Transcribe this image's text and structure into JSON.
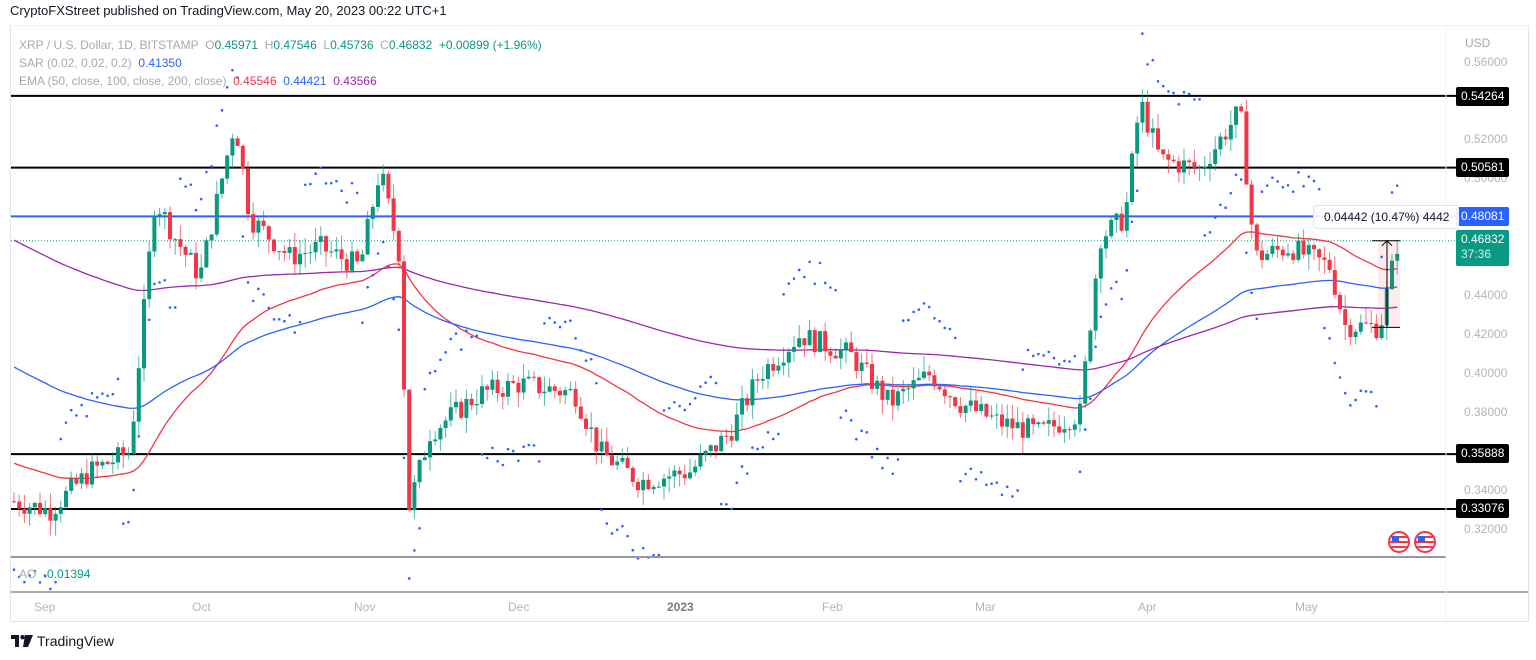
{
  "publisher_line": "CryptoFXStreet published on TradingView.com, May 20, 2023 00:22 UTC+1",
  "legend": {
    "symbol": "XRP / U.S. Dollar, 1D, BITSTAMP",
    "open_label": "O",
    "open": "0.45971",
    "high_label": "H",
    "high": "0.47546",
    "low_label": "L",
    "low": "0.45736",
    "close_label": "C",
    "close": "0.46832",
    "change": "+0.00899 (+1.96%)",
    "sar_label": "SAR (0.02, 0.02, 0.2)",
    "sar_value": "0.41350",
    "ema_label": "EMA (50, close, 100, close, 200, close)",
    "ema50": "0.45546",
    "ema100": "0.44421",
    "ema200": "0.43566"
  },
  "price_axis": {
    "currency": "USD",
    "ticks": [
      "0.56000",
      "0.52000",
      "0.50000",
      "0.44000",
      "0.42000",
      "0.40000",
      "0.38000",
      "0.34000",
      "0.32000"
    ]
  },
  "level_tags": {
    "r1": "0.54264",
    "r2": "0.50581",
    "blue": "0.48081",
    "last_price": "0.46832",
    "countdown": "37:36",
    "s1": "0.35888",
    "s2": "0.33076"
  },
  "measure_label": "0.04442 (10.47%) 4442",
  "ao": {
    "label": "AO",
    "value": "-0.01394"
  },
  "time_axis": [
    "Sep",
    "Oct",
    "Nov",
    "Dec",
    "2023",
    "Feb",
    "Mar",
    "Apr",
    "May"
  ],
  "brand": "TradingView",
  "colors": {
    "up": "#089981",
    "down": "#f23645",
    "ema50": "#f23645",
    "ema100": "#2962ff",
    "ema200": "#9c27b0",
    "sar": "#2962ff",
    "hline": "#000000",
    "blue_line": "#2962ff"
  },
  "chart_data": {
    "type": "candlestick",
    "title": "XRP / U.S. Dollar, 1D, BITSTAMP",
    "xlabel": "",
    "ylabel": "USD",
    "ylim": [
      0.31,
      0.57
    ],
    "x_ticks": [
      "Sep",
      "Oct",
      "Nov",
      "Dec",
      "2023",
      "Feb",
      "Mar",
      "Apr",
      "May"
    ],
    "y_ticks": [
      0.32,
      0.34,
      0.38,
      0.4,
      0.42,
      0.44,
      0.5,
      0.52,
      0.56
    ],
    "horizontal_levels": [
      0.54264,
      0.50581,
      0.48081,
      0.35888,
      0.33076
    ],
    "last": {
      "open": 0.45971,
      "high": 0.47546,
      "low": 0.45736,
      "close": 0.46832,
      "change": 0.00899,
      "change_pct": 1.96
    },
    "indicators": {
      "SAR": {
        "params": [
          0.02,
          0.02,
          0.2
        ],
        "value": 0.4135
      },
      "EMA50": 0.45546,
      "EMA100": 0.44421,
      "EMA200": 0.43566,
      "AO": -0.01394
    },
    "measure": {
      "delta": 0.04442,
      "pct": 10.47,
      "from": 0.4239,
      "to": 0.46832
    },
    "approx_monthly_close": [
      {
        "month": "Aug-end",
        "close": 0.335
      },
      {
        "month": "Sep",
        "close": 0.49
      },
      {
        "month": "Oct",
        "close": 0.46
      },
      {
        "month": "Nov",
        "close": 0.39
      },
      {
        "month": "Dec",
        "close": 0.34
      },
      {
        "month": "Jan",
        "close": 0.41
      },
      {
        "month": "Feb",
        "close": 0.38
      },
      {
        "month": "Mar",
        "close": 0.54
      },
      {
        "month": "Apr",
        "close": 0.47
      },
      {
        "month": "May-20",
        "close": 0.46832
      }
    ]
  }
}
